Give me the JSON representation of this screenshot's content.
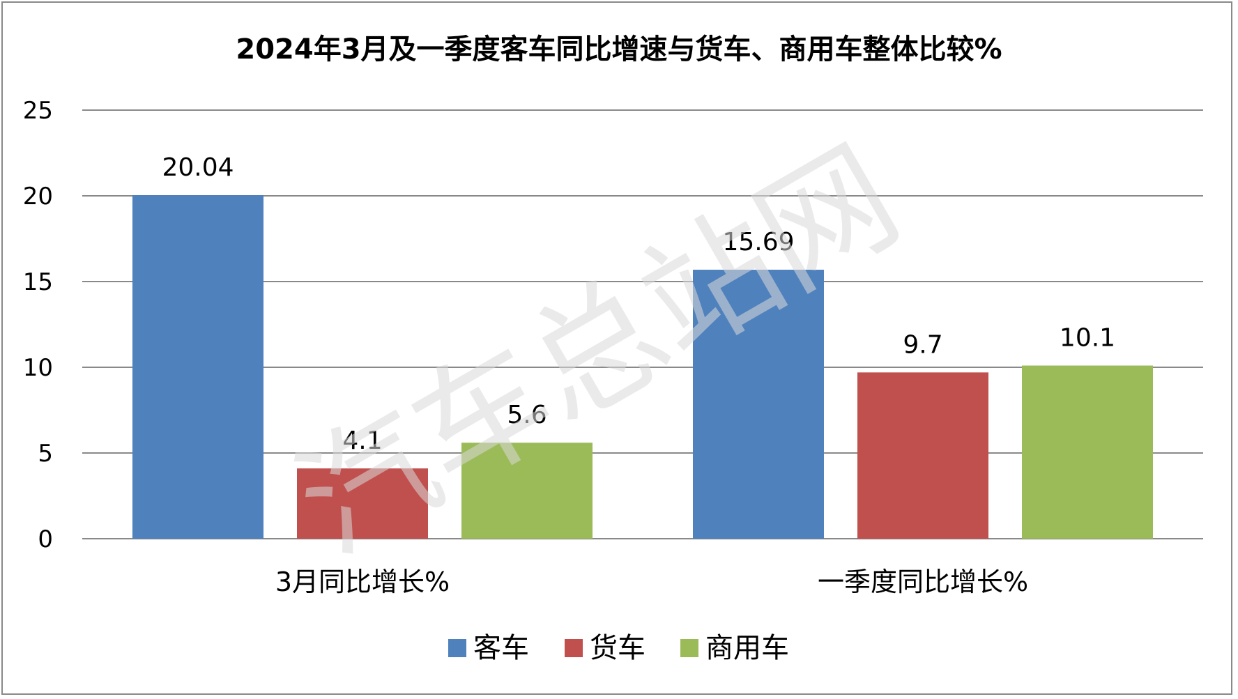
{
  "chart_data": {
    "type": "bar",
    "title": "2024年3月及一季度客车同比增速与货车、商用车整体比较%",
    "categories": [
      "3月同比增长%",
      "一季度同比增长%"
    ],
    "series": [
      {
        "name": "客车",
        "values": [
          20.04,
          15.69
        ],
        "color": "#4F81BD"
      },
      {
        "name": "货车",
        "values": [
          4.1,
          9.7
        ],
        "color": "#C0504D"
      },
      {
        "name": "商用车",
        "values": [
          5.6,
          10.1
        ],
        "color": "#9BBB59"
      }
    ],
    "data_labels": [
      [
        "20.04",
        "15.69"
      ],
      [
        "4.1",
        "9.7"
      ],
      [
        "5.6",
        "10.1"
      ]
    ],
    "ylim": [
      0,
      25
    ],
    "yticks": [
      0,
      5,
      10,
      15,
      20,
      25
    ],
    "grid": true,
    "legend_position": "bottom",
    "watermark": "汽车总站网"
  }
}
